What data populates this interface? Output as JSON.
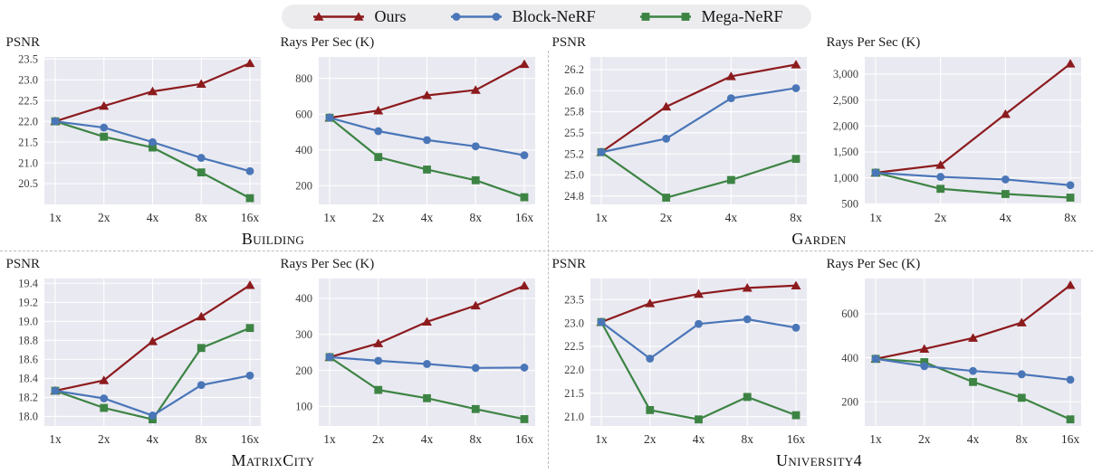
{
  "legend": {
    "items": [
      {
        "label": "Ours",
        "color": "#8c1b1e",
        "marker": "triangle"
      },
      {
        "label": "Block-NeRF",
        "color": "#4a76b8",
        "marker": "circle"
      },
      {
        "label": "Mega-NeRF",
        "color": "#3d8444",
        "marker": "square"
      }
    ]
  },
  "style": {
    "plot_bg": "#e9e9f1",
    "grid_color": "#ffffff",
    "tick_color": "#3d3d3d",
    "divider_color": "#bcbcbc",
    "legend_bg": "#ececee"
  },
  "groups": [
    {
      "caption": "Building"
    },
    {
      "caption": "Garden"
    },
    {
      "caption": "MatrixCity"
    },
    {
      "caption": "University4"
    }
  ],
  "chart_data": [
    {
      "type": "line",
      "scene": "Building",
      "title": "PSNR",
      "x": [
        "1x",
        "2x",
        "4x",
        "8x",
        "16x"
      ],
      "ylim": [
        20.0,
        23.55
      ],
      "yticks": [
        20.5,
        21.0,
        21.5,
        22.0,
        22.5,
        23.0,
        23.5
      ],
      "ytick_labels": [
        "20.5",
        "21.0",
        "21.5",
        "22.0",
        "22.5",
        "23.0",
        "23.5"
      ],
      "series": [
        {
          "name": "Ours",
          "values": [
            22.0,
            22.37,
            22.72,
            22.9,
            23.4
          ]
        },
        {
          "name": "Block-NeRF",
          "values": [
            22.0,
            21.85,
            21.5,
            21.12,
            20.8
          ]
        },
        {
          "name": "Mega-NeRF",
          "values": [
            22.0,
            21.63,
            21.37,
            20.77,
            20.15
          ]
        }
      ]
    },
    {
      "type": "line",
      "scene": "Building",
      "title": "Rays Per Sec (K)",
      "x": [
        "1x",
        "2x",
        "4x",
        "8x",
        "16x"
      ],
      "ylim": [
        95,
        920
      ],
      "yticks": [
        200,
        400,
        600,
        800
      ],
      "ytick_labels": [
        "200",
        "400",
        "600",
        "800"
      ],
      "series": [
        {
          "name": "Ours",
          "values": [
            580,
            620,
            705,
            735,
            880
          ]
        },
        {
          "name": "Block-NeRF",
          "values": [
            580,
            505,
            455,
            420,
            370
          ]
        },
        {
          "name": "Mega-NeRF",
          "values": [
            580,
            360,
            290,
            230,
            135
          ]
        }
      ]
    },
    {
      "type": "line",
      "scene": "Garden",
      "title": "PSNR",
      "x": [
        "1x",
        "2x",
        "4x",
        "8x"
      ],
      "ylim": [
        24.65,
        26.4
      ],
      "yticks": [
        24.75,
        25.0,
        25.25,
        25.5,
        25.75,
        26.0,
        26.25
      ],
      "ytick_labels": [
        "24.8",
        "25.0",
        "25.2",
        "25.5",
        "25.8",
        "26.0",
        "26.2"
      ],
      "series": [
        {
          "name": "Ours",
          "values": [
            25.27,
            25.81,
            26.17,
            26.31
          ]
        },
        {
          "name": "Block-NeRF",
          "values": [
            25.27,
            25.43,
            25.91,
            26.03
          ]
        },
        {
          "name": "Mega-NeRF",
          "values": [
            25.27,
            24.73,
            24.94,
            25.19
          ]
        }
      ]
    },
    {
      "type": "line",
      "scene": "Garden",
      "title": "Rays Per Sec (K)",
      "x": [
        "1x",
        "2x",
        "4x",
        "8x"
      ],
      "ylim": [
        490,
        3330
      ],
      "yticks": [
        500,
        1000,
        1500,
        2000,
        2500,
        3000
      ],
      "ytick_labels": [
        "500",
        "1,000",
        "1,500",
        "2,000",
        "2,500",
        "3,000"
      ],
      "series": [
        {
          "name": "Ours",
          "values": [
            1100,
            1250,
            2230,
            3200
          ]
        },
        {
          "name": "Block-NeRF",
          "values": [
            1100,
            1020,
            970,
            860
          ]
        },
        {
          "name": "Mega-NeRF",
          "values": [
            1100,
            790,
            690,
            620
          ]
        }
      ]
    },
    {
      "type": "line",
      "scene": "MatrixCity",
      "title": "PSNR",
      "x": [
        "1x",
        "2x",
        "4x",
        "8x",
        "16x"
      ],
      "ylim": [
        17.9,
        19.45
      ],
      "yticks": [
        18.0,
        18.2,
        18.4,
        18.6,
        18.8,
        19.0,
        19.2,
        19.4
      ],
      "ytick_labels": [
        "18.0",
        "18.2",
        "18.4",
        "18.6",
        "18.8",
        "19.0",
        "19.2",
        "19.4"
      ],
      "series": [
        {
          "name": "Ours",
          "values": [
            18.27,
            18.38,
            18.79,
            19.05,
            19.38
          ]
        },
        {
          "name": "Block-NeRF",
          "values": [
            18.27,
            18.19,
            18.01,
            18.33,
            18.43
          ]
        },
        {
          "name": "Mega-NeRF",
          "values": [
            18.27,
            18.09,
            17.97,
            18.72,
            18.93
          ]
        }
      ]
    },
    {
      "type": "line",
      "scene": "MatrixCity",
      "title": "Rays Per Sec (K)",
      "x": [
        "1x",
        "2x",
        "4x",
        "8x",
        "16x"
      ],
      "ylim": [
        46,
        455
      ],
      "yticks": [
        100,
        200,
        300,
        400
      ],
      "ytick_labels": [
        "100",
        "200",
        "300",
        "400"
      ],
      "series": [
        {
          "name": "Ours",
          "values": [
            237,
            275,
            335,
            380,
            435
          ]
        },
        {
          "name": "Block-NeRF",
          "values": [
            237,
            227,
            218,
            207,
            208
          ]
        },
        {
          "name": "Mega-NeRF",
          "values": [
            237,
            146,
            123,
            93,
            65
          ]
        }
      ]
    },
    {
      "type": "line",
      "scene": "University4",
      "title": "PSNR",
      "x": [
        "1x",
        "2x",
        "4x",
        "8x",
        "16x"
      ],
      "ylim": [
        20.8,
        23.95
      ],
      "yticks": [
        21.0,
        21.5,
        22.0,
        22.5,
        23.0,
        23.5
      ],
      "ytick_labels": [
        "21.0",
        "21.5",
        "22.0",
        "22.5",
        "23.0",
        "23.5"
      ],
      "series": [
        {
          "name": "Ours",
          "values": [
            23.02,
            23.42,
            23.62,
            23.75,
            23.8
          ]
        },
        {
          "name": "Block-NeRF",
          "values": [
            23.02,
            22.24,
            22.98,
            23.08,
            22.9
          ]
        },
        {
          "name": "Mega-NeRF",
          "values": [
            23.02,
            21.14,
            20.94,
            21.42,
            21.03
          ]
        }
      ]
    },
    {
      "type": "line",
      "scene": "University4",
      "title": "Rays Per Sec (K)",
      "x": [
        "1x",
        "2x",
        "4x",
        "8x",
        "16x"
      ],
      "ylim": [
        90,
        760
      ],
      "yticks": [
        200,
        400,
        600
      ],
      "ytick_labels": [
        "200",
        "400",
        "600"
      ],
      "series": [
        {
          "name": "Ours",
          "values": [
            395,
            440,
            490,
            560,
            730
          ]
        },
        {
          "name": "Block-NeRF",
          "values": [
            395,
            362,
            340,
            325,
            300
          ]
        },
        {
          "name": "Mega-NeRF",
          "values": [
            395,
            380,
            290,
            218,
            120
          ]
        }
      ]
    }
  ]
}
